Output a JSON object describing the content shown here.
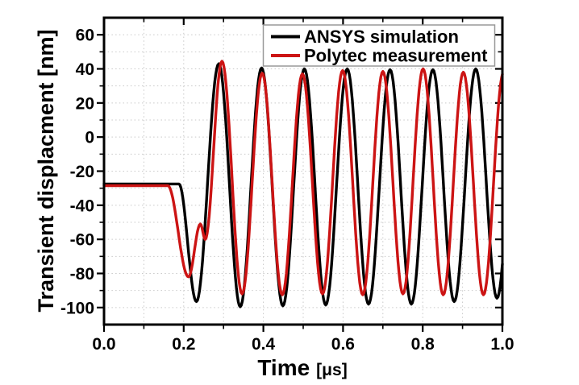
{
  "window": {
    "background": "#ffffff"
  },
  "chart_data": {
    "type": "line",
    "title": "",
    "xlabel": "Time [μs]",
    "xlabel_main": "Time",
    "xlabel_unit": "[μs]",
    "ylabel": "Transient displacment [nm]",
    "xlim": [
      0,
      1
    ],
    "ylim": [
      -110,
      70
    ],
    "grid": "dotted, at every minor interval (x: 0.1 μs, y: 10 nm)",
    "grid_color": "#c9c9c9",
    "x_axis": {
      "major_ticks": [
        {
          "v": 0,
          "label": "0.0"
        },
        {
          "v": 0.2,
          "label": "0.2"
        },
        {
          "v": 0.4,
          "label": "0.4"
        },
        {
          "v": 0.6,
          "label": "0.6"
        },
        {
          "v": 0.8,
          "label": "0.8"
        },
        {
          "v": 1,
          "label": "1.0"
        }
      ],
      "minor_ticks": [
        0.1,
        0.3,
        0.5,
        0.7,
        0.9
      ],
      "gridlines": [
        0.1,
        0.2,
        0.3,
        0.4,
        0.5,
        0.6,
        0.7,
        0.8,
        0.9
      ]
    },
    "y_axis": {
      "major_ticks": [
        {
          "v": 60,
          "label": "60"
        },
        {
          "v": 40,
          "label": "40"
        },
        {
          "v": 20,
          "label": "20"
        },
        {
          "v": 0,
          "label": "0"
        },
        {
          "v": -20,
          "label": "-20"
        },
        {
          "v": -40,
          "label": "-40"
        },
        {
          "v": -60,
          "label": "-60"
        },
        {
          "v": -80,
          "label": "-80"
        },
        {
          "v": -100,
          "label": "-100"
        }
      ],
      "minor_ticks": [
        50,
        30,
        10,
        -10,
        -30,
        -50,
        -70,
        -90
      ],
      "gridlines": [
        60,
        50,
        40,
        30,
        20,
        10,
        0,
        -10,
        -20,
        -30,
        -40,
        -50,
        -60,
        -70,
        -80,
        -90,
        -100
      ]
    },
    "legend": {
      "position": "top-right-inside",
      "border_color": "#999999",
      "background": "#ffffff",
      "entries": [
        "ANSYS simulation",
        "Polytec measurement"
      ]
    },
    "series": [
      {
        "name": "ANSYS simulation",
        "color": "#000000",
        "line_width": 3.4,
        "period_us": 0.1075,
        "anchors": [
          [
            0,
            -27.5
          ],
          [
            0.188,
            -27.5
          ],
          [
            0.232,
            -96.5
          ],
          [
            0.288,
            43
          ],
          [
            0.342,
            -99.5
          ],
          [
            0.3955,
            40.5
          ],
          [
            0.449,
            -99
          ],
          [
            0.503,
            40
          ],
          [
            0.5565,
            -98.5
          ],
          [
            0.6105,
            40
          ],
          [
            0.664,
            -98
          ],
          [
            0.718,
            39.5
          ],
          [
            0.7715,
            -98
          ],
          [
            0.8255,
            39.5
          ],
          [
            0.879,
            -96.5
          ],
          [
            0.933,
            40
          ],
          [
            0.9865,
            -94.5
          ],
          [
            1.04,
            40
          ]
        ]
      },
      {
        "name": "Polytec measurement",
        "color": "#cc1414",
        "line_width": 3.4,
        "period_us": 0.101,
        "anchors": [
          [
            0,
            -28.5
          ],
          [
            0.16,
            -28.5
          ],
          [
            0.212,
            -82
          ],
          [
            0.242,
            -51
          ],
          [
            0.254,
            -60
          ],
          [
            0.296,
            44.5
          ],
          [
            0.3465,
            -92
          ],
          [
            0.397,
            37.5
          ],
          [
            0.4475,
            -92.5
          ],
          [
            0.498,
            37
          ],
          [
            0.5485,
            -92
          ],
          [
            0.599,
            39
          ],
          [
            0.6495,
            -92.5
          ],
          [
            0.7,
            38.5
          ],
          [
            0.7505,
            -92
          ],
          [
            0.801,
            40
          ],
          [
            0.8515,
            -92.5
          ],
          [
            0.902,
            38
          ],
          [
            0.9525,
            -92.5
          ],
          [
            1.003,
            38
          ]
        ]
      }
    ]
  }
}
